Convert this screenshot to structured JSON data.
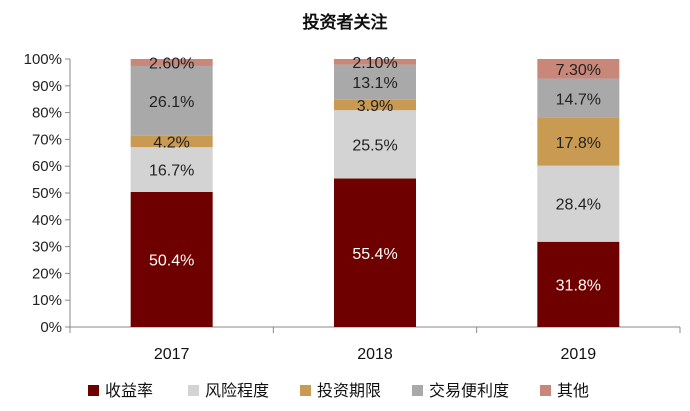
{
  "chart_data": {
    "type": "bar",
    "stacked": true,
    "title": "投资者关注",
    "xlabel": "",
    "ylabel": "",
    "categories": [
      "2017",
      "2018",
      "2019"
    ],
    "ylim": [
      0,
      100
    ],
    "yticks": [
      0,
      10,
      20,
      30,
      40,
      50,
      60,
      70,
      80,
      90,
      100
    ],
    "ytick_labels": [
      "0%",
      "10%",
      "20%",
      "30%",
      "40%",
      "50%",
      "60%",
      "70%",
      "80%",
      "90%",
      "100%"
    ],
    "legend_position": "bottom",
    "grid": false,
    "series": [
      {
        "name": "收益率",
        "color": "#6E0000",
        "label_color": "#ffffff",
        "values": [
          50.4,
          55.4,
          31.8
        ],
        "labels": [
          "50.4%",
          "55.4%",
          "31.8%"
        ]
      },
      {
        "name": "风险程度",
        "color": "#D3D3D3",
        "label_color": "#222222",
        "values": [
          16.7,
          25.5,
          28.4
        ],
        "labels": [
          "16.7%",
          "25.5%",
          "28.4%"
        ]
      },
      {
        "name": "投资期限",
        "color": "#C99A52",
        "label_color": "#222222",
        "values": [
          4.2,
          3.9,
          17.8
        ],
        "labels": [
          "4.2%",
          "3.9%",
          "17.8%"
        ]
      },
      {
        "name": "交易便利度",
        "color": "#A9A9A9",
        "label_color": "#222222",
        "values": [
          26.1,
          13.1,
          14.7
        ],
        "labels": [
          "26.1%",
          "13.1%",
          "14.7%"
        ]
      },
      {
        "name": "其他",
        "color": "#C9877A",
        "label_color": "#222222",
        "values": [
          2.6,
          2.1,
          7.3
        ],
        "labels": [
          "2.60%",
          "2.10%",
          "7.30%"
        ]
      }
    ]
  }
}
